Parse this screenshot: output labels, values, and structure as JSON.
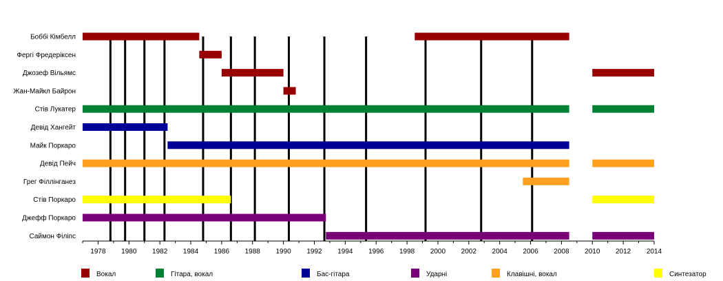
{
  "chart_data": {
    "type": "timeline",
    "xlim": [
      1977.0,
      2014.0
    ],
    "xticks": [
      1978,
      1980,
      1982,
      1984,
      1986,
      1988,
      1990,
      1992,
      1994,
      1996,
      1998,
      2000,
      2002,
      2004,
      2006,
      2008,
      2010,
      2012,
      2014
    ],
    "roles": [
      {
        "key": "vocal",
        "label": "Вокал",
        "color": "#990000"
      },
      {
        "key": "guitar",
        "label": "Гітара, вокал",
        "color": "#008033"
      },
      {
        "key": "bass",
        "label": "Бас-гітара",
        "color": "#000099"
      },
      {
        "key": "drums",
        "label": "Ударні",
        "color": "#770077"
      },
      {
        "key": "keys",
        "label": "Клавішні, вокал",
        "color": "#FFA020"
      },
      {
        "key": "synth",
        "label": "Синтезатор",
        "color": "#FFFF00"
      }
    ],
    "members": [
      {
        "name": "Боббі Кімбелл",
        "role": "vocal",
        "periods": [
          [
            1977.0,
            1984.55
          ],
          [
            1998.5,
            2008.5
          ]
        ]
      },
      {
        "name": "Фергі Фредеріксен",
        "role": "vocal",
        "periods": [
          [
            1984.55,
            1986.0
          ]
        ]
      },
      {
        "name": "Джозеф Вільямс",
        "role": "vocal",
        "periods": [
          [
            1986.0,
            1990.0
          ],
          [
            2010.0,
            2014.0
          ]
        ]
      },
      {
        "name": "Жан-Майкл Байрон",
        "role": "vocal",
        "periods": [
          [
            1990.0,
            1990.8
          ]
        ]
      },
      {
        "name": "Стів Лукатер",
        "role": "guitar",
        "periods": [
          [
            1977.0,
            2008.5
          ],
          [
            2010.0,
            2014.0
          ]
        ]
      },
      {
        "name": "Девід Хангейт",
        "role": "bass",
        "periods": [
          [
            1977.0,
            1982.5
          ]
        ]
      },
      {
        "name": "Майк Поркаро",
        "role": "bass",
        "periods": [
          [
            1982.5,
            2008.5
          ]
        ]
      },
      {
        "name": "Девід Пейч",
        "role": "keys",
        "periods": [
          [
            1977.0,
            2008.5
          ],
          [
            2010.0,
            2014.0
          ]
        ]
      },
      {
        "name": "Грег Філлінганез",
        "role": "keys",
        "periods": [
          [
            2005.5,
            2008.5
          ]
        ]
      },
      {
        "name": "Стів Поркаро",
        "role": "synth",
        "periods": [
          [
            1977.0,
            1986.6
          ],
          [
            2010.0,
            2014.0
          ]
        ]
      },
      {
        "name": "Джефф Поркаро",
        "role": "drums",
        "periods": [
          [
            1977.0,
            1992.75
          ]
        ]
      },
      {
        "name": "Саймон Філіпс",
        "role": "drums",
        "periods": [
          [
            1992.75,
            2008.5
          ],
          [
            2010.0,
            2014.0
          ]
        ]
      }
    ],
    "album_lines": [
      1978.8,
      1979.75,
      1981.0,
      1982.3,
      1984.8,
      1986.6,
      1988.15,
      1990.35,
      1992.65,
      1995.35,
      1999.2,
      2002.8,
      2006.1
    ]
  }
}
